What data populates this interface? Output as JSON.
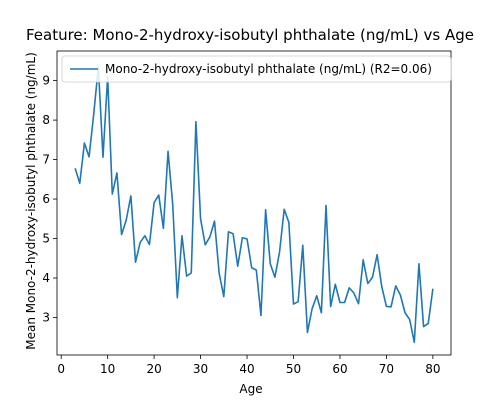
{
  "chart_data": {
    "type": "line",
    "title": "Feature: Mono-2-hydroxy-isobutyl phthalate (ng/mL) vs Age",
    "xlabel": "Age",
    "ylabel": "Mean Mono-2-hydroxy-isobutyl phthalate (ng/mL)",
    "xlim": [
      -0.9,
      83.9
    ],
    "ylim": [
      2.05,
      9.75
    ],
    "xticks": [
      0,
      10,
      20,
      30,
      40,
      50,
      60,
      70,
      80
    ],
    "yticks": [
      3,
      4,
      5,
      6,
      7,
      8,
      9
    ],
    "grid": false,
    "legend": {
      "placement": "top-left"
    },
    "line_color": "#1f77b4",
    "series": [
      {
        "name": "Mono-2-hydroxy-isobutyl phthalate (ng/mL) (R2=0.06)",
        "x": [
          3,
          4,
          5,
          6,
          7,
          8,
          9,
          10,
          11,
          12,
          13,
          14,
          15,
          16,
          17,
          18,
          19,
          20,
          21,
          22,
          23,
          24,
          25,
          26,
          27,
          28,
          29,
          30,
          31,
          32,
          33,
          34,
          35,
          36,
          37,
          38,
          39,
          40,
          41,
          42,
          43,
          44,
          45,
          46,
          47,
          48,
          49,
          50,
          51,
          52,
          53,
          54,
          55,
          56,
          57,
          58,
          59,
          60,
          61,
          62,
          63,
          64,
          65,
          66,
          67,
          68,
          69,
          70,
          71,
          72,
          73,
          74,
          75,
          76,
          77,
          78,
          79,
          80
        ],
        "values": [
          6.78,
          6.4,
          7.42,
          7.07,
          8.15,
          9.35,
          7.06,
          9.1,
          6.13,
          6.66,
          5.1,
          5.47,
          6.08,
          4.4,
          4.9,
          5.07,
          4.85,
          5.91,
          6.1,
          5.26,
          7.21,
          5.87,
          3.5,
          5.07,
          4.05,
          4.13,
          7.96,
          5.5,
          4.84,
          5.04,
          5.44,
          4.12,
          3.53,
          5.17,
          5.12,
          4.3,
          5.02,
          4.99,
          4.26,
          4.2,
          3.05,
          5.73,
          4.36,
          4.02,
          4.66,
          5.74,
          5.41,
          3.34,
          3.4,
          4.83,
          2.62,
          3.22,
          3.55,
          3.12,
          5.84,
          3.28,
          3.84,
          3.38,
          3.38,
          3.75,
          3.62,
          3.35,
          4.46,
          3.86,
          4.02,
          4.59,
          3.78,
          3.28,
          3.27,
          3.8,
          3.57,
          3.12,
          2.95,
          2.37,
          4.36,
          2.77,
          2.85,
          3.73
        ]
      }
    ]
  }
}
